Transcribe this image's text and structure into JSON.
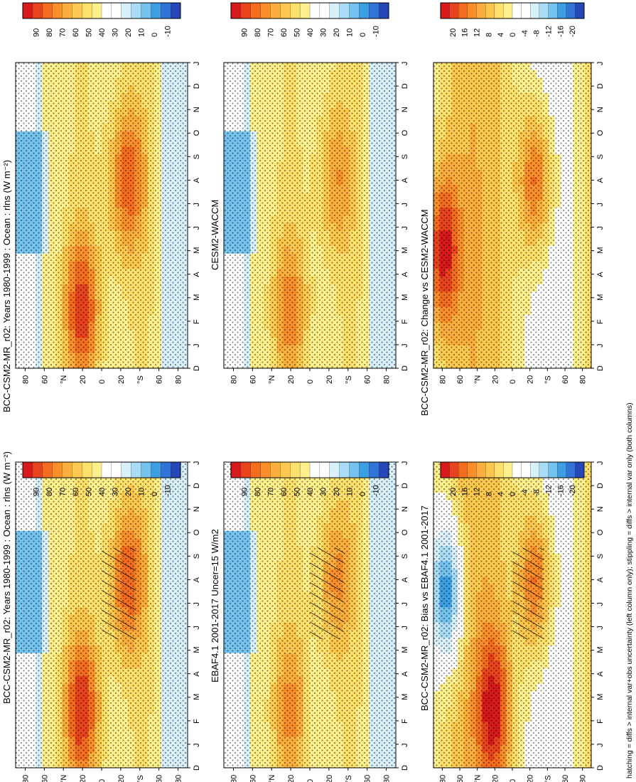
{
  "figure": {
    "footnote": "hatching = diffs > internal var+obs uncertainty (left column only); stippling = diffs > internal var only (both columns)"
  },
  "palettes": {
    "absolute": [
      "#d7191c",
      "#e8431c",
      "#f46d1f",
      "#f98e2b",
      "#fcae3c",
      "#fdc84d",
      "#fee06a",
      "#fff08c",
      "#ffffff",
      "#ffffff",
      "#d7f0fb",
      "#a9dcf6",
      "#74c2ee",
      "#3d9fe3",
      "#2f74d6",
      "#2547b9"
    ],
    "difference": [
      "#d7191c",
      "#e8431c",
      "#f46d1f",
      "#f98e2b",
      "#fcae3c",
      "#fdc84d",
      "#fee06a",
      "#fff08c",
      "#ffffff",
      "#ffffff",
      "#d7f0fb",
      "#a9dcf6",
      "#74c2ee",
      "#3d9fe3",
      "#2f74d6",
      "#2547b9"
    ]
  },
  "axes": {
    "months": [
      "D",
      "J",
      "F",
      "M",
      "A",
      "M",
      "J",
      "J",
      "A",
      "S",
      "O",
      "N",
      "D",
      "J"
    ],
    "lat_ticks": [
      "80",
      "60",
      "°N",
      "20",
      "0",
      "20",
      "°S",
      "60",
      "80"
    ]
  },
  "chart_data": [
    {
      "type": "heatmap",
      "id": "model_left",
      "title": "BCC-CSM2-MR_r02: Years 1980-1999 : Ocean : rlns (W m⁻²)",
      "x": "month",
      "y": "latitude",
      "colorbar_ticks": [
        "90",
        "80",
        "70",
        "60",
        "50",
        "40",
        "30",
        "20",
        "10",
        "0",
        "-10"
      ],
      "colorbar_range": [
        -20,
        100
      ],
      "peaks": [
        {
          "lat": 20,
          "month": 2.5,
          "value": 90
        },
        {
          "lat": -25,
          "month": 8.0,
          "value": 85
        }
      ],
      "hatching": true
    },
    {
      "type": "heatmap",
      "id": "model_right",
      "title": "BCC-CSM2-MR_r02: Years 1980-1999 : Ocean : rlns (W m⁻²)",
      "x": "month",
      "y": "latitude",
      "colorbar_ticks": [
        "90",
        "80",
        "70",
        "60",
        "50",
        "40",
        "30",
        "20",
        "10",
        "0",
        "-10"
      ],
      "colorbar_range": [
        -20,
        100
      ],
      "peaks": [
        {
          "lat": 20,
          "month": 2.5,
          "value": 88
        },
        {
          "lat": -25,
          "month": 8.0,
          "value": 85
        }
      ],
      "hatching": false
    },
    {
      "type": "heatmap",
      "id": "obs",
      "title": "EBAF4.1 2001-2017 Uncer=15 W/m2",
      "x": "month",
      "y": "latitude",
      "colorbar_ticks": [
        "90",
        "80",
        "70",
        "60",
        "50",
        "40",
        "30",
        "20",
        "10",
        "0",
        "-10"
      ],
      "colorbar_range": [
        -20,
        100
      ],
      "peaks": [
        {
          "lat": 20,
          "month": 2.5,
          "value": 70
        },
        {
          "lat": -25,
          "month": 8.0,
          "value": 72
        }
      ],
      "hatching": true
    },
    {
      "type": "heatmap",
      "id": "ref_model",
      "title": "CESM2-WACCM",
      "x": "month",
      "y": "latitude",
      "colorbar_ticks": [
        "90",
        "80",
        "70",
        "60",
        "50",
        "40",
        "30",
        "20",
        "10",
        "0",
        "-10"
      ],
      "colorbar_range": [
        -20,
        100
      ],
      "peaks": [
        {
          "lat": 20,
          "month": 2.5,
          "value": 72
        },
        {
          "lat": -25,
          "month": 8.0,
          "value": 70
        }
      ],
      "hatching": false
    },
    {
      "type": "heatmap",
      "id": "bias",
      "title": "BCC-CSM2-MR_r02: Bias vs EBAF4.1 2001-2017",
      "x": "month",
      "y": "latitude",
      "colorbar_ticks": [
        "20",
        "16",
        "12",
        "8",
        "4",
        "0",
        "-4",
        "-8",
        "-12",
        "-16",
        "-20"
      ],
      "colorbar_range": [
        -24,
        24
      ],
      "peaks": [
        {
          "lat": 20,
          "month": 2.5,
          "value": 20
        },
        {
          "lat": -25,
          "month": 8.0,
          "value": 20
        },
        {
          "lat": 70,
          "month": 7.5,
          "value": -18
        }
      ],
      "hatching": true
    },
    {
      "type": "heatmap",
      "id": "change",
      "title": "BCC-CSM2-MR_r02: Change vs CESM2-WACCM",
      "x": "month",
      "y": "latitude",
      "colorbar_ticks": [
        "20",
        "16",
        "12",
        "8",
        "4",
        "0",
        "-4",
        "-8",
        "-12",
        "-16",
        "-20"
      ],
      "colorbar_range": [
        -24,
        24
      ],
      "peaks": [
        {
          "lat": 75,
          "month": 5.0,
          "value": 22
        },
        {
          "lat": -25,
          "month": 8.0,
          "value": 20
        }
      ],
      "hatching": false
    }
  ]
}
